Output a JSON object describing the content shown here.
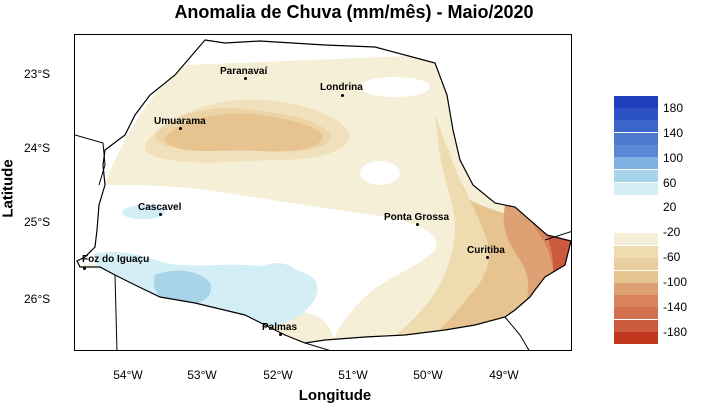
{
  "title": "Anomalia de Chuva (mm/mês) - Maio/2020",
  "axes": {
    "xlabel": "Longitude",
    "ylabel": "Latitude",
    "xticks": [
      "54°W",
      "53°W",
      "52°W",
      "51°W",
      "50°W",
      "49°W"
    ],
    "yticks": [
      "23°S",
      "24°S",
      "25°S",
      "26°S"
    ]
  },
  "cities": [
    {
      "name": "Paranavaí"
    },
    {
      "name": "Londrina"
    },
    {
      "name": "Umuarama"
    },
    {
      "name": "Cascavel"
    },
    {
      "name": "Ponta Grossa"
    },
    {
      "name": "Curitiba"
    },
    {
      "name": "Foz do Iguaçu"
    },
    {
      "name": "Palmas"
    }
  ],
  "legend": {
    "labels": [
      "180",
      "140",
      "100",
      "60",
      "20",
      "-20",
      "-60",
      "-100",
      "-140",
      "-180"
    ],
    "colors_positive": [
      "#1f3fbf",
      "#3a66cc",
      "#5a8ad6",
      "#7eb0e0",
      "#a8d4ea",
      "#d4eef5"
    ],
    "colors_negative": [
      "#f4efd6",
      "#eedcb0",
      "#e6c38f",
      "#dea173",
      "#d8835e",
      "#cc5a3e",
      "#c2381f"
    ]
  },
  "colors": {
    "land_neutral": "#ffffff",
    "boundary": "#000000"
  }
}
